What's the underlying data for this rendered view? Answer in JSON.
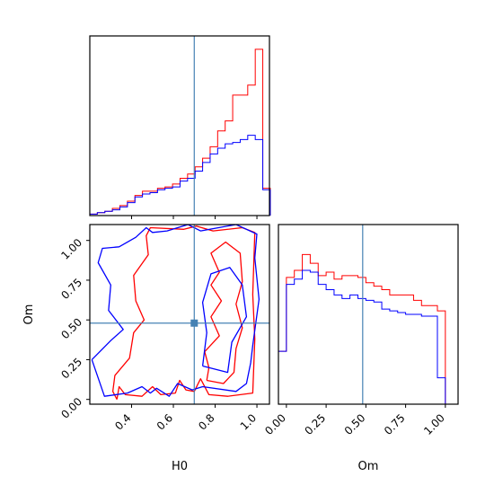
{
  "chart_data": {
    "type": "corner",
    "parameters": [
      "H0",
      "Om"
    ],
    "truth": {
      "H0": 0.7,
      "Om": 0.48
    },
    "colors": {
      "red": "#ff0000",
      "blue": "#0000ff",
      "truth": "#4682b4"
    },
    "panels": [
      {
        "id": "hist_H0",
        "type": "histogram",
        "xlabel": "",
        "xlim": [
          0.2,
          1.06
        ],
        "bin_edges": [
          0.2,
          0.236,
          0.272,
          0.308,
          0.344,
          0.38,
          0.416,
          0.452,
          0.488,
          0.524,
          0.56,
          0.596,
          0.632,
          0.668,
          0.704,
          0.74,
          0.776,
          0.812,
          0.848,
          0.884,
          0.92,
          0.956,
          0.992,
          1.028,
          1.064
        ],
        "series": [
          {
            "color": "red",
            "values": [
              1,
              2,
              3,
              5,
              7,
              10,
              14,
              17,
              17,
              19,
              20,
              22,
              26,
              29,
              34,
              40,
              48,
              59,
              66,
              84,
              84,
              91,
              116,
              19
            ]
          },
          {
            "color": "blue",
            "values": [
              1,
              2,
              3,
              4,
              6,
              9,
              13,
              15,
              16,
              18,
              19,
              20,
              24,
              26,
              31,
              37,
              43,
              47,
              50,
              51,
              53,
              56,
              53,
              18
            ]
          }
        ]
      },
      {
        "id": "contour_H0_Om",
        "type": "contour",
        "xlabel": "H0",
        "ylabel": "Om",
        "xlim": [
          0.2,
          1.06
        ],
        "ylim": [
          -0.03,
          1.1
        ],
        "xticks": [
          "0.4",
          "0.6",
          "0.8",
          "1.0"
        ],
        "yticks": [
          "0.00",
          "0.25",
          "0.50",
          "0.75",
          "1.00"
        ],
        "series": [
          {
            "color": "red",
            "contours": [
              [
                [
                  0.33,
                  0.0
                ],
                [
                  0.34,
                  0.08
                ],
                [
                  0.37,
                  0.03
                ],
                [
                  0.45,
                  0.02
                ],
                [
                  0.5,
                  0.08
                ],
                [
                  0.54,
                  0.03
                ],
                [
                  0.61,
                  0.04
                ],
                [
                  0.63,
                  0.12
                ],
                [
                  0.66,
                  0.06
                ],
                [
                  0.7,
                  0.05
                ],
                [
                  0.73,
                  0.13
                ],
                [
                  0.77,
                  0.03
                ],
                [
                  0.86,
                  0.02
                ],
                [
                  0.98,
                  0.04
                ],
                [
                  0.99,
                  0.38
                ],
                [
                  0.98,
                  0.66
                ],
                [
                  0.99,
                  1.05
                ],
                [
                  0.93,
                  1.08
                ],
                [
                  0.79,
                  1.06
                ],
                [
                  0.71,
                  1.09
                ],
                [
                  0.65,
                  1.07
                ],
                [
                  0.49,
                  1.08
                ],
                [
                  0.47,
                  1.03
                ],
                [
                  0.48,
                  0.91
                ],
                [
                  0.41,
                  0.78
                ],
                [
                  0.42,
                  0.62
                ],
                [
                  0.46,
                  0.5
                ],
                [
                  0.41,
                  0.42
                ],
                [
                  0.39,
                  0.26
                ],
                [
                  0.32,
                  0.15
                ],
                [
                  0.31,
                  0.05
                ],
                [
                  0.33,
                  0.0
                ]
              ],
              [
                [
                  0.76,
                  0.12
                ],
                [
                  0.84,
                  0.1
                ],
                [
                  0.89,
                  0.17
                ],
                [
                  0.9,
                  0.32
                ],
                [
                  0.93,
                  0.45
                ],
                [
                  0.9,
                  0.6
                ],
                [
                  0.93,
                  0.74
                ],
                [
                  0.92,
                  0.92
                ],
                [
                  0.85,
                  0.99
                ],
                [
                  0.78,
                  0.92
                ],
                [
                  0.82,
                  0.8
                ],
                [
                  0.78,
                  0.72
                ],
                [
                  0.83,
                  0.62
                ],
                [
                  0.78,
                  0.52
                ],
                [
                  0.82,
                  0.4
                ],
                [
                  0.75,
                  0.3
                ],
                [
                  0.77,
                  0.2
                ],
                [
                  0.76,
                  0.12
                ]
              ]
            ]
          },
          {
            "color": "blue",
            "contours": [
              [
                [
                  0.21,
                  0.25
                ],
                [
                  0.27,
                  0.02
                ],
                [
                  0.38,
                  0.04
                ],
                [
                  0.45,
                  0.08
                ],
                [
                  0.49,
                  0.04
                ],
                [
                  0.52,
                  0.07
                ],
                [
                  0.58,
                  0.02
                ],
                [
                  0.62,
                  0.1
                ],
                [
                  0.69,
                  0.06
                ],
                [
                  0.74,
                  0.08
                ],
                [
                  0.9,
                  0.05
                ],
                [
                  0.95,
                  0.1
                ],
                [
                  0.97,
                  0.23
                ],
                [
                  0.98,
                  0.34
                ],
                [
                  1.01,
                  0.63
                ],
                [
                  0.99,
                  0.89
                ],
                [
                  1.0,
                  1.04
                ],
                [
                  0.9,
                  1.1
                ],
                [
                  0.73,
                  1.06
                ],
                [
                  0.67,
                  1.1
                ],
                [
                  0.57,
                  1.06
                ],
                [
                  0.5,
                  1.05
                ],
                [
                  0.47,
                  1.08
                ],
                [
                  0.42,
                  1.02
                ],
                [
                  0.34,
                  0.96
                ],
                [
                  0.26,
                  0.95
                ],
                [
                  0.24,
                  0.86
                ],
                [
                  0.3,
                  0.72
                ],
                [
                  0.29,
                  0.56
                ],
                [
                  0.36,
                  0.44
                ],
                [
                  0.3,
                  0.37
                ],
                [
                  0.21,
                  0.25
                ]
              ],
              [
                [
                  0.74,
                  0.21
                ],
                [
                  0.86,
                  0.17
                ],
                [
                  0.88,
                  0.36
                ],
                [
                  0.95,
                  0.52
                ],
                [
                  0.93,
                  0.72
                ],
                [
                  0.87,
                  0.83
                ],
                [
                  0.78,
                  0.79
                ],
                [
                  0.74,
                  0.61
                ],
                [
                  0.76,
                  0.42
                ],
                [
                  0.74,
                  0.21
                ]
              ]
            ]
          }
        ]
      },
      {
        "id": "hist_Om",
        "type": "histogram",
        "xlabel": "Om",
        "xlim": [
          -0.05,
          1.08
        ],
        "xticks": [
          "0.00",
          "0.25",
          "0.50",
          "0.75",
          "1.00"
        ],
        "bin_edges": [
          -0.05,
          -0.02,
          0.0,
          0.05,
          0.1,
          0.15,
          0.2,
          0.25,
          0.3,
          0.35,
          0.4,
          0.45,
          0.5,
          0.55,
          0.6,
          0.65,
          0.7,
          0.75,
          0.8,
          0.85,
          0.9,
          0.95,
          1.0,
          1.03
        ],
        "series": [
          {
            "color": "red",
            "values": [
              0.3,
              0.3,
              0.72,
              0.76,
              0.85,
              0.8,
              0.73,
              0.75,
              0.71,
              0.73,
              0.73,
              0.72,
              0.69,
              0.67,
              0.65,
              0.62,
              0.62,
              0.62,
              0.59,
              0.56,
              0.56,
              0.53,
              0.0
            ]
          },
          {
            "color": "blue",
            "values": [
              0.3,
              0.3,
              0.68,
              0.71,
              0.76,
              0.75,
              0.68,
              0.65,
              0.62,
              0.6,
              0.62,
              0.6,
              0.59,
              0.58,
              0.54,
              0.53,
              0.52,
              0.51,
              0.51,
              0.5,
              0.5,
              0.15,
              0.0
            ]
          }
        ]
      }
    ]
  }
}
